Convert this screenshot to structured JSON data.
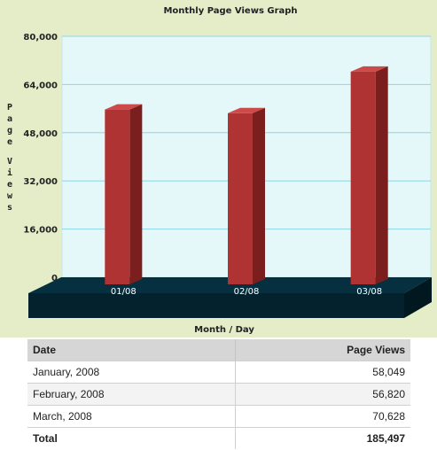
{
  "chart_data": {
    "type": "bar",
    "title": "Monthly Page Views Graph",
    "xlabel": "Month / Day",
    "ylabel": "Page Views",
    "categories": [
      "01/08",
      "02/08",
      "03/08"
    ],
    "values": [
      58049,
      56820,
      70628
    ],
    "ylim": [
      0,
      80000
    ],
    "yticks": [
      "80,000",
      "64,000",
      "48,000",
      "32,000",
      "16,000",
      "0"
    ],
    "ytick_values": [
      80000,
      64000,
      48000,
      32000,
      16000,
      0
    ],
    "grid": true,
    "style": "3d",
    "colors": {
      "bar_front": "#b03333",
      "bar_side": "#7a1e1e",
      "bar_top": "#cc4a4a",
      "plot_bg": "#e4f7f9",
      "grid": "#8fd5e6",
      "floor": "#063040",
      "panel_bg": "#e4ecc8"
    }
  },
  "table": {
    "headers": {
      "date": "Date",
      "views": "Page Views"
    },
    "rows": [
      {
        "date": "January, 2008",
        "views": "58,049"
      },
      {
        "date": "February, 2008",
        "views": "56,820"
      },
      {
        "date": "March, 2008",
        "views": "70,628"
      }
    ],
    "total": {
      "label": "Total",
      "views": "185,497"
    }
  }
}
